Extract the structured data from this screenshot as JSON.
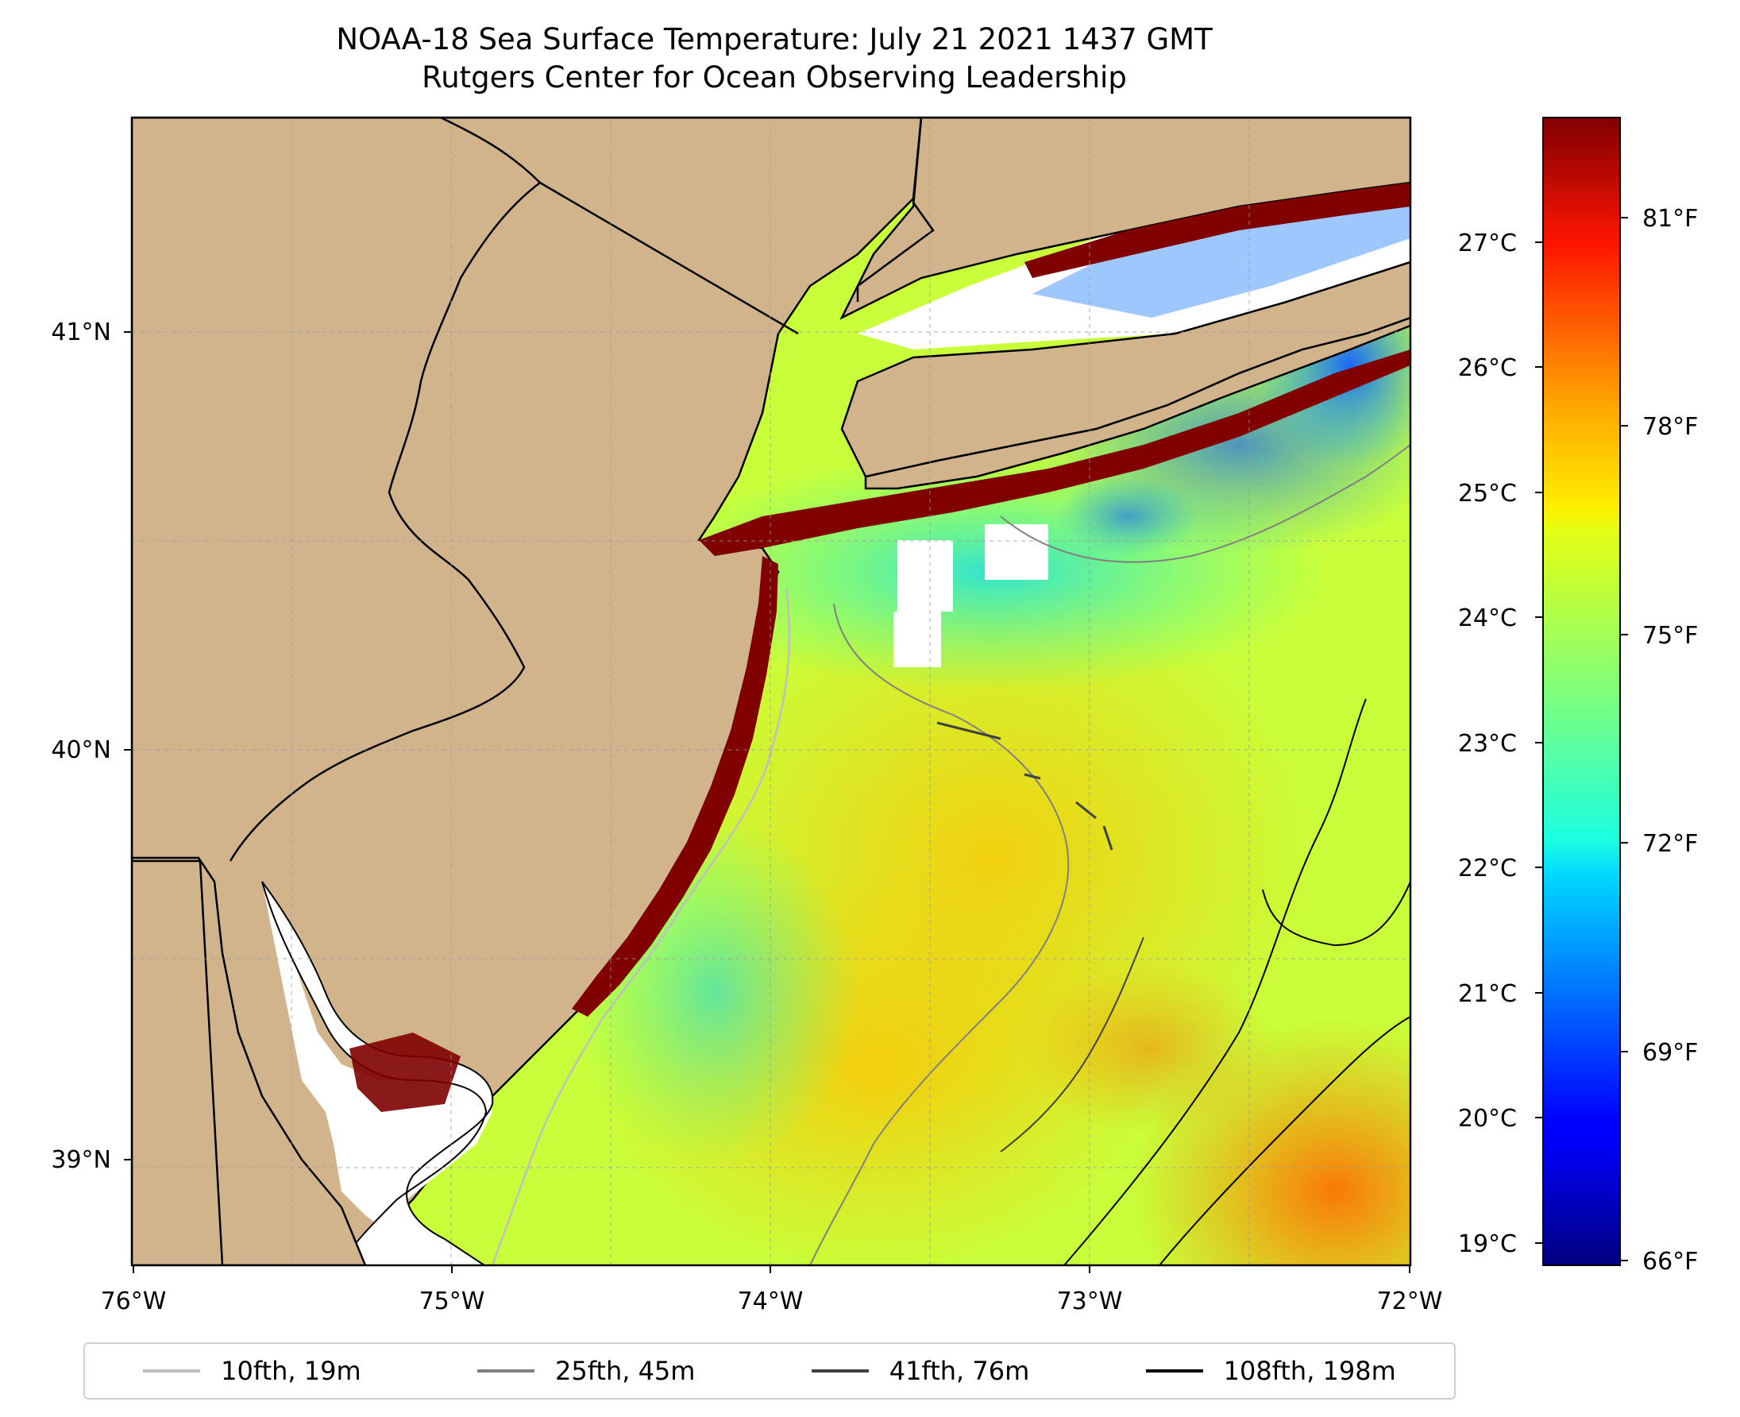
{
  "title": {
    "line1": "NOAA-18 Sea Surface Temperature: July 21 2021 1437 GMT",
    "line2": "Rutgers Center for Ocean Observing Leadership"
  },
  "map": {
    "lon_ticks": [
      "76°W",
      "75°W",
      "74°W",
      "73°W",
      "72°W"
    ],
    "lat_ticks": [
      "41°N",
      "40°N",
      "39°N"
    ],
    "land_color": "#d2b48c",
    "no_data_color": "#ffffff",
    "hot_color": "#800000"
  },
  "colorbar": {
    "celsius_ticks": [
      "27°C",
      "26°C",
      "25°C",
      "24°C",
      "23°C",
      "22°C",
      "21°C",
      "20°C",
      "19°C"
    ],
    "fahrenheit_ticks": [
      "81°F",
      "78°F",
      "75°F",
      "72°F",
      "69°F",
      "66°F"
    ],
    "colormap": "jet"
  },
  "legend": {
    "items": [
      {
        "label": "10fth, 19m",
        "color": "#bfbfbf"
      },
      {
        "label": "25fth, 45m",
        "color": "#808080"
      },
      {
        "label": "41fth, 76m",
        "color": "#404040"
      },
      {
        "label": "108fth, 198m",
        "color": "#000000"
      }
    ]
  }
}
